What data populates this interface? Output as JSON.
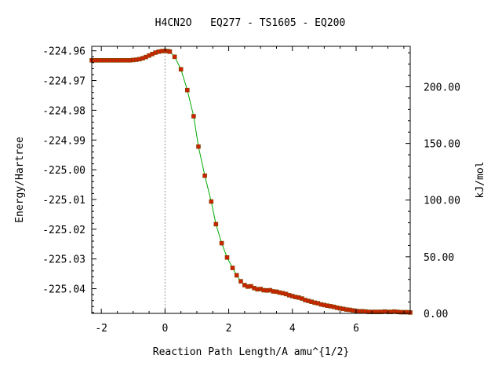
{
  "chart_data": {
    "type": "line",
    "title": "H4CN2O   EQ277 - TS1605 - EQ200",
    "xlabel": "Reaction Path Length/A amu^{1/2}",
    "ylabel": "Energy/Hartree",
    "y2label": "kJ/mol",
    "xlim": [
      -2.3,
      7.7
    ],
    "ylim": [
      -225.0483,
      -224.9585
    ],
    "y2lim": [
      0,
      235.7
    ],
    "grid": false,
    "x_ticks": [
      -2,
      0,
      2,
      4,
      6
    ],
    "x_tick_labels": [
      "-2",
      "0",
      "2",
      "4",
      "6"
    ],
    "y_ticks": [
      -224.96,
      -224.97,
      -224.98,
      -224.99,
      -225.0,
      -225.01,
      -225.02,
      -225.03,
      -225.04
    ],
    "y_tick_labels": [
      "-224.96",
      "-224.97",
      "-224.98",
      "-224.99",
      "-225.00",
      "-225.01",
      "-225.02",
      "-225.03",
      "-225.04"
    ],
    "y2_ticks": [
      0,
      50,
      100,
      150,
      200
    ],
    "y2_tick_labels": [
      "0.00",
      "50.00",
      "100.00",
      "150.00",
      "200.00"
    ],
    "ts_marker_x": 0,
    "colors": {
      "line": "#00aa00",
      "points": "#cc2200",
      "point_edge": "#7a4a00",
      "ts_line": "#999999"
    },
    "series": [
      {
        "x": [
          -2.3,
          -2.2,
          -2.1,
          -2.0,
          -1.9,
          -1.8,
          -1.7,
          -1.6,
          -1.5,
          -1.4,
          -1.3,
          -1.2,
          -1.1,
          -1.0,
          -0.9,
          -0.8,
          -0.7,
          -0.6,
          -0.5,
          -0.4,
          -0.3,
          -0.2,
          -0.1,
          0.0,
          0.1,
          0.15,
          0.3,
          0.5,
          0.7,
          0.9,
          1.05,
          1.25,
          1.45,
          1.6,
          1.78,
          1.95,
          2.12,
          2.25,
          2.38,
          2.5,
          2.6,
          2.7,
          2.8,
          2.9,
          3.0,
          3.1,
          3.2,
          3.3,
          3.4,
          3.5,
          3.6,
          3.7,
          3.8,
          3.9,
          4.0,
          4.1,
          4.2,
          4.3,
          4.4,
          4.5,
          4.6,
          4.7,
          4.8,
          4.9,
          5.0,
          5.1,
          5.2,
          5.3,
          5.4,
          5.5,
          5.6,
          5.7,
          5.8,
          5.9,
          6.0,
          6.1,
          6.2,
          6.3,
          6.4,
          6.5,
          6.6,
          6.7,
          6.8,
          6.9,
          7.0,
          7.1,
          7.2,
          7.3,
          7.4,
          7.5,
          7.6,
          7.7
        ],
        "y": [
          -224.9632,
          -224.9632,
          -224.9632,
          -224.9632,
          -224.9632,
          -224.9632,
          -224.9632,
          -224.9632,
          -224.9632,
          -224.9632,
          -224.9632,
          -224.9632,
          -224.9632,
          -224.9631,
          -224.963,
          -224.9628,
          -224.9625,
          -224.9621,
          -224.9616,
          -224.9611,
          -224.9606,
          -224.9603,
          -224.9601,
          -224.96,
          -224.9601,
          -224.9603,
          -224.962,
          -224.9662,
          -224.9732,
          -224.982,
          -224.9922,
          -225.002,
          -225.0107,
          -225.0183,
          -225.0247,
          -225.0295,
          -225.033,
          -225.0355,
          -225.0375,
          -225.0388,
          -225.0393,
          -225.0392,
          -225.0398,
          -225.0402,
          -225.0401,
          -225.0405,
          -225.0406,
          -225.0405,
          -225.0409,
          -225.041,
          -225.0413,
          -225.0415,
          -225.0418,
          -225.0422,
          -225.0425,
          -225.0428,
          -225.043,
          -225.0433,
          -225.0438,
          -225.0441,
          -225.0444,
          -225.0447,
          -225.0449,
          -225.0453,
          -225.0455,
          -225.0457,
          -225.0459,
          -225.0461,
          -225.0464,
          -225.0466,
          -225.0468,
          -225.047,
          -225.0471,
          -225.0473,
          -225.0475,
          -225.0476,
          -225.0476,
          -225.0477,
          -225.0478,
          -225.0478,
          -225.0478,
          -225.0478,
          -225.0478,
          -225.0477,
          -225.0478,
          -225.0478,
          -225.0477,
          -225.0478,
          -225.0479,
          -225.0479,
          -225.0479,
          -225.048
        ]
      }
    ]
  }
}
